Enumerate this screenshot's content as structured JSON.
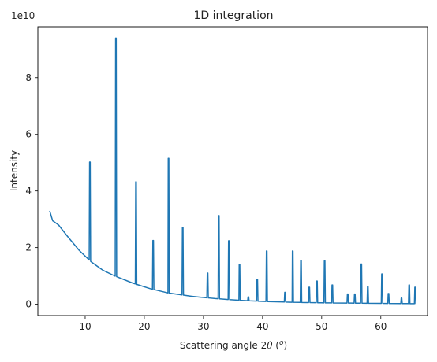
{
  "chart_data": {
    "type": "line",
    "title": "1D integration",
    "xlabel_main": "Scattering angle 2",
    "xlabel_theta": "θ",
    "xlabel_unit_open": " (",
    "xlabel_unit_deg": "o",
    "xlabel_unit_close": ")",
    "ylabel": "Intensity",
    "y_offset_label": "1e10",
    "xlim": [
      2.0,
      67.9
    ],
    "ylim": [
      -0.4,
      9.8
    ],
    "x_ticks": [
      10,
      20,
      30,
      40,
      50,
      60
    ],
    "x_tick_labels": [
      "10",
      "20",
      "30",
      "40",
      "50",
      "60"
    ],
    "y_ticks": [
      0,
      2,
      4,
      6,
      8
    ],
    "y_tick_labels": [
      "0",
      "2",
      "4",
      "6",
      "8"
    ],
    "grid": false,
    "line_color": "#1f77b4",
    "baseline": [
      [
        4.0,
        3.3
      ],
      [
        4.5,
        2.95
      ],
      [
        5.5,
        2.8
      ],
      [
        7,
        2.4
      ],
      [
        9,
        1.9
      ],
      [
        11,
        1.5
      ],
      [
        13,
        1.2
      ],
      [
        15,
        1.0
      ],
      [
        18,
        0.75
      ],
      [
        21,
        0.55
      ],
      [
        24,
        0.4
      ],
      [
        28,
        0.28
      ],
      [
        32,
        0.2
      ],
      [
        36,
        0.14
      ],
      [
        40,
        0.1
      ],
      [
        45,
        0.07
      ],
      [
        50,
        0.05
      ],
      [
        55,
        0.04
      ],
      [
        60,
        0.03
      ],
      [
        66,
        0.02
      ]
    ],
    "peaks": [
      {
        "x": 10.8,
        "y": 5.02
      },
      {
        "x": 15.2,
        "y": 9.4
      },
      {
        "x": 18.6,
        "y": 4.32
      },
      {
        "x": 21.5,
        "y": 2.25
      },
      {
        "x": 24.1,
        "y": 5.15
      },
      {
        "x": 26.5,
        "y": 2.72
      },
      {
        "x": 30.7,
        "y": 1.1
      },
      {
        "x": 32.6,
        "y": 3.13
      },
      {
        "x": 34.3,
        "y": 2.24
      },
      {
        "x": 36.1,
        "y": 1.41
      },
      {
        "x": 37.6,
        "y": 0.26
      },
      {
        "x": 39.1,
        "y": 0.88
      },
      {
        "x": 40.7,
        "y": 1.88
      },
      {
        "x": 43.8,
        "y": 0.42
      },
      {
        "x": 45.1,
        "y": 1.88
      },
      {
        "x": 46.5,
        "y": 1.55
      },
      {
        "x": 47.9,
        "y": 0.6
      },
      {
        "x": 49.2,
        "y": 0.82
      },
      {
        "x": 50.5,
        "y": 1.53
      },
      {
        "x": 51.8,
        "y": 0.68
      },
      {
        "x": 54.4,
        "y": 0.36
      },
      {
        "x": 55.6,
        "y": 0.36
      },
      {
        "x": 56.7,
        "y": 1.42
      },
      {
        "x": 57.8,
        "y": 0.62
      },
      {
        "x": 60.2,
        "y": 1.07
      },
      {
        "x": 61.3,
        "y": 0.38
      },
      {
        "x": 63.5,
        "y": 0.22
      },
      {
        "x": 64.8,
        "y": 0.68
      },
      {
        "x": 65.8,
        "y": 0.6
      }
    ]
  }
}
